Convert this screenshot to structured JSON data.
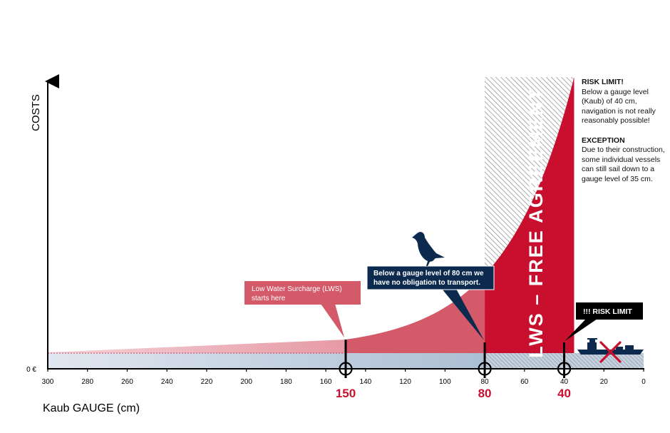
{
  "chart_data": {
    "type": "area",
    "xlabel": "Kaub GAUGE (cm)",
    "ylabel": "COSTS",
    "y_zero_label": "0 €",
    "xlim": [
      300,
      0
    ],
    "x_ticks": [
      300,
      280,
      260,
      240,
      220,
      200,
      180,
      160,
      140,
      120,
      100,
      80,
      60,
      40,
      20,
      0
    ],
    "lws_start": 150,
    "no_obligation": 80,
    "risk_limit": 40,
    "zone_label": "LWS – FREE AGREEMENT",
    "marker_labels": [
      "150",
      "80",
      "40"
    ],
    "colors": {
      "accent": "#c8102e",
      "surcharge": "#d45a6a",
      "navy": "#0b2a4e",
      "base": "#c9d6e6"
    }
  },
  "annotations": {
    "lws_box": [
      "Low Water Surcharge (LWS)",
      "starts here"
    ],
    "obligation_box": [
      "Below a gauge level of 80 cm we",
      "have no obligation to transport."
    ],
    "risk_box": "!!! RISK LIMIT"
  },
  "side_notes": {
    "risk_title": "RISK LIMIT!",
    "risk_text": "Below a gauge level (Kaub) of 40 cm, navigation is not really reasonably possible!",
    "exception_title": "EXCEPTION",
    "exception_text": "Due to their construction, some individual vessels can still sail down to a gauge level of 35 cm."
  },
  "icons": [
    "seagull-icon",
    "ship-icon",
    "cross-icon"
  ]
}
